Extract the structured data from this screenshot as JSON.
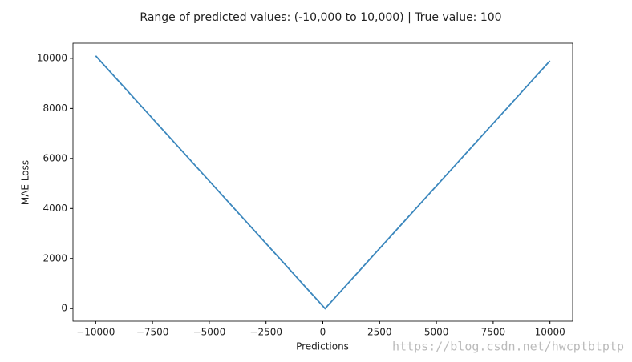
{
  "chart_data": {
    "type": "line",
    "title": "Range of predicted values: (-10,000 to 10,000) | True value: 100",
    "x_label": "Predictions",
    "y_label": "MAE Loss",
    "x": [
      -10000,
      100,
      10000
    ],
    "series": [
      {
        "name": "MAE Loss",
        "color": "#3b87bd",
        "values": [
          10100,
          0,
          9900
        ]
      }
    ],
    "xlim": [
      -11000,
      11000
    ],
    "xticks": [
      {
        "value": -10000,
        "label": "−10000"
      },
      {
        "value": -7500,
        "label": "−7500"
      },
      {
        "value": -5000,
        "label": "−5000"
      },
      {
        "value": -2500,
        "label": "−2500"
      },
      0,
      2500,
      5000,
      7500,
      10000
    ],
    "ylim": [
      -505,
      10605
    ],
    "yticks": [
      0,
      2000,
      4000,
      6000,
      8000,
      10000
    ],
    "grid": false,
    "watermark": "https://blog.csdn.net/hwcptbtptp"
  }
}
